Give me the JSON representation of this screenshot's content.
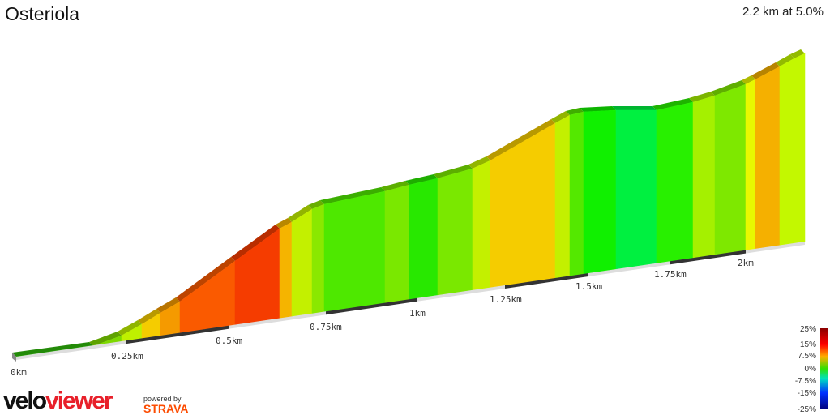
{
  "title": "Osteriola",
  "summary": "2.2 km at 5.0%",
  "chart_data": {
    "type": "area",
    "title": "Osteriola",
    "x_unit": "km",
    "x_ticks": [
      "0km",
      "0.25km",
      "0.5km",
      "0.75km",
      "1km",
      "1.25km",
      "1.5km",
      "1.75km",
      "2km"
    ],
    "total_distance_km": 2.2,
    "average_grade_pct": 5.0,
    "segment_colors": [
      "#2fb80a",
      "#7ed800",
      "#bff000",
      "#f5cc00",
      "#f59a00",
      "#fa5a00",
      "#f53c00",
      "#f5b400",
      "#c3f000",
      "#8ae800",
      "#4ee800",
      "#7ae800",
      "#28e800",
      "#7ae800",
      "#c3f000",
      "#f5cc00",
      "#c3f000",
      "#54e800",
      "#10f000",
      "#00f040",
      "#28f000",
      "#a5f000",
      "#7ee800",
      "#e8f800",
      "#f5b000",
      "#c3f800"
    ],
    "legend": {
      "labels": [
        "25%",
        "15%",
        "7.5%",
        "0%",
        "-7.5%",
        "-15%",
        "-25%"
      ]
    }
  },
  "branding": {
    "logo_a": "velo",
    "logo_b": "viewer",
    "powered": "powered by",
    "strava": "STRAVA"
  }
}
